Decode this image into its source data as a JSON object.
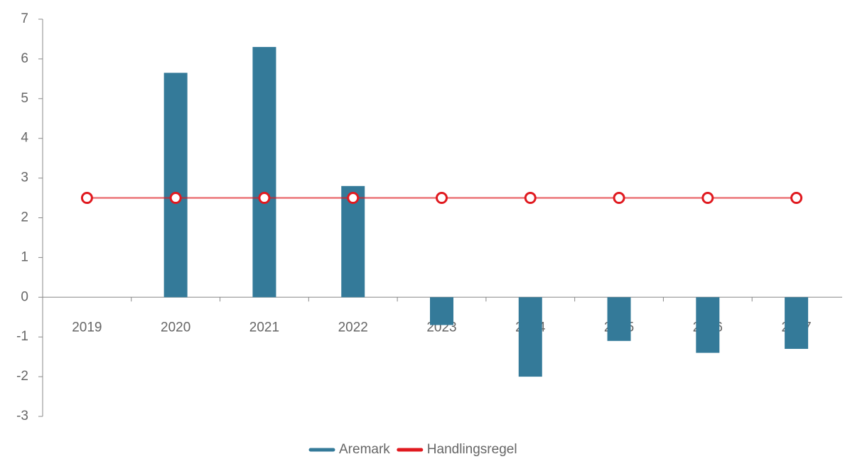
{
  "chart_data": {
    "type": "bar",
    "categories": [
      "2019",
      "2020",
      "2021",
      "2022",
      "2023",
      "2024",
      "2025",
      "2026",
      "2027"
    ],
    "series": [
      {
        "name": "Aremark",
        "color": "#347a99",
        "type": "bar",
        "values": [
          null,
          5.65,
          6.3,
          2.8,
          -0.7,
          -2.0,
          -1.1,
          -1.4,
          -1.3
        ]
      },
      {
        "name": "Handlingsregel",
        "color": "#e0191f",
        "type": "line",
        "values": [
          2.5,
          2.5,
          2.5,
          2.5,
          2.5,
          2.5,
          2.5,
          2.5,
          2.5
        ]
      }
    ],
    "ylim": [
      -3,
      7
    ],
    "yticks": [
      -3,
      -2,
      -1,
      0,
      1,
      2,
      3,
      4,
      5,
      6,
      7
    ],
    "legend": "bottom"
  }
}
